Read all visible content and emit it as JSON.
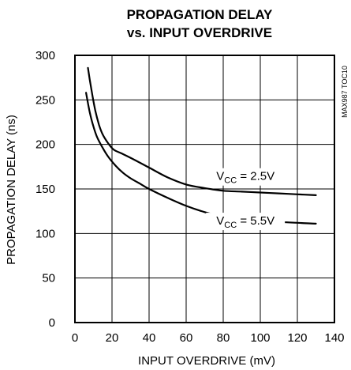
{
  "chart_data": {
    "type": "line",
    "title_line1": "PROPAGATION DELAY",
    "title_line2": "vs. INPUT OVERDRIVE",
    "xlabel": "INPUT OVERDRIVE (mV)",
    "ylabel": "PROPAGATION DELAY (ns)",
    "xlim": [
      0,
      140
    ],
    "ylim": [
      0,
      300
    ],
    "xticks": [
      0,
      20,
      40,
      60,
      80,
      100,
      120,
      140
    ],
    "yticks": [
      0,
      50,
      100,
      150,
      200,
      250,
      300
    ],
    "grid": true,
    "figure_code": "MAX987 TOC10",
    "series": [
      {
        "name": "VCC = 2.5V",
        "label_main": "V",
        "label_sub": "CC",
        "label_rest": " = 2.5V",
        "label_at": [
          92,
          160
        ],
        "x": [
          7,
          9,
          11,
          13,
          15,
          18,
          21,
          25,
          30,
          40,
          50,
          60,
          70,
          80,
          90,
          100,
          110,
          120,
          130
        ],
        "y": [
          286,
          260,
          238,
          222,
          211,
          201,
          194,
          190,
          185,
          174,
          163,
          155,
          151,
          148,
          147,
          146,
          145,
          144,
          143
        ]
      },
      {
        "name": "VCC = 5.5V",
        "label_main": "V",
        "label_sub": "CC",
        "label_rest": " = 5.5V",
        "label_at": [
          92,
          110
        ],
        "x": [
          6,
          8,
          10,
          12,
          15,
          18,
          22,
          26,
          30,
          35,
          40,
          50,
          60,
          70,
          80,
          90,
          100,
          110,
          120,
          130
        ],
        "y": [
          258,
          236,
          220,
          208,
          196,
          186,
          176,
          168,
          162,
          156,
          150,
          140,
          131,
          124,
          119,
          117,
          115,
          113,
          112,
          111
        ]
      }
    ]
  }
}
